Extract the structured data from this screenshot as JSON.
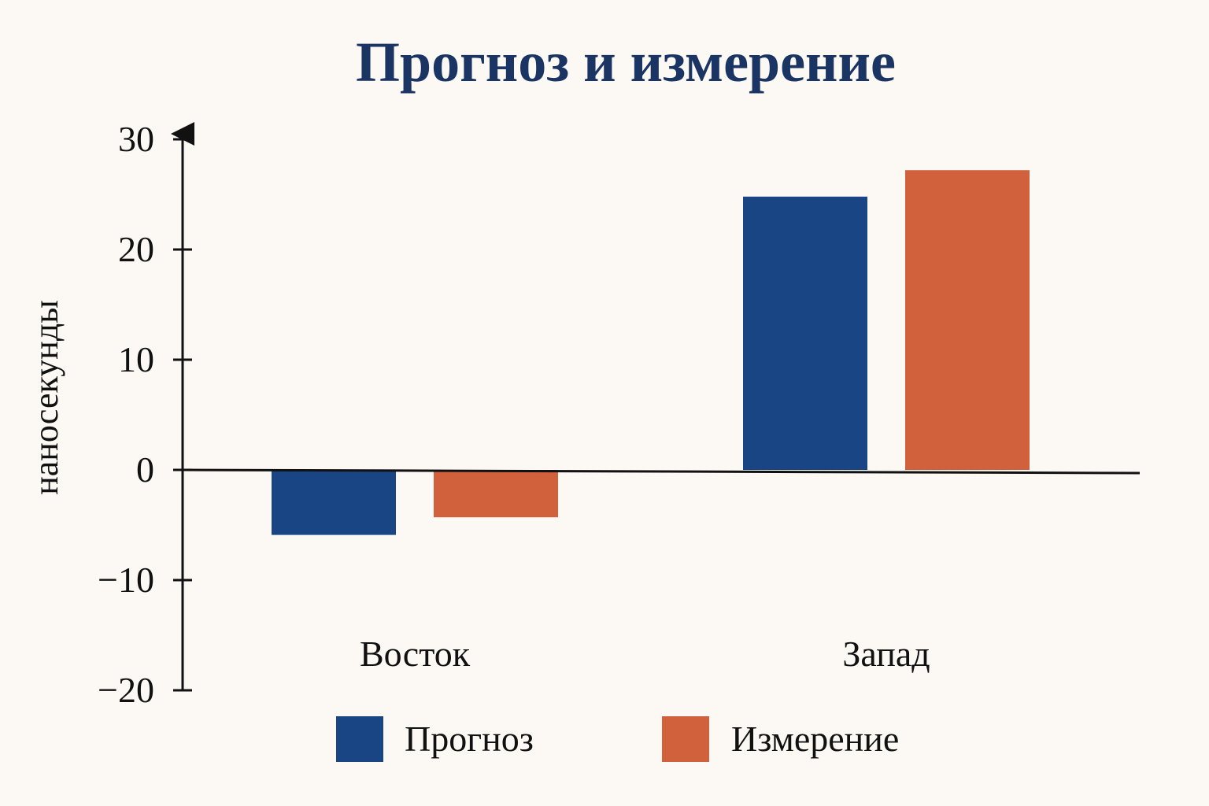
{
  "chart_data": {
    "type": "bar",
    "title": "Прогноз и измерение",
    "ylabel": "наносекунды",
    "xlabel": "",
    "categories": [
      "Восток",
      "Запад"
    ],
    "series": [
      {
        "name": "Прогноз",
        "values": [
          -5.9,
          24.8
        ],
        "color": "#1a4585"
      },
      {
        "name": "Измерение",
        "values": [
          -4.3,
          27.2
        ],
        "color": "#d1603d"
      }
    ],
    "ylim": [
      -20,
      30
    ],
    "yticks": [
      30,
      20,
      10,
      0,
      -10,
      -20
    ],
    "ytick_labels": [
      "30",
      "20",
      "10",
      "0",
      "−10",
      "−20"
    ],
    "grid": false,
    "legend_position": "bottom"
  }
}
